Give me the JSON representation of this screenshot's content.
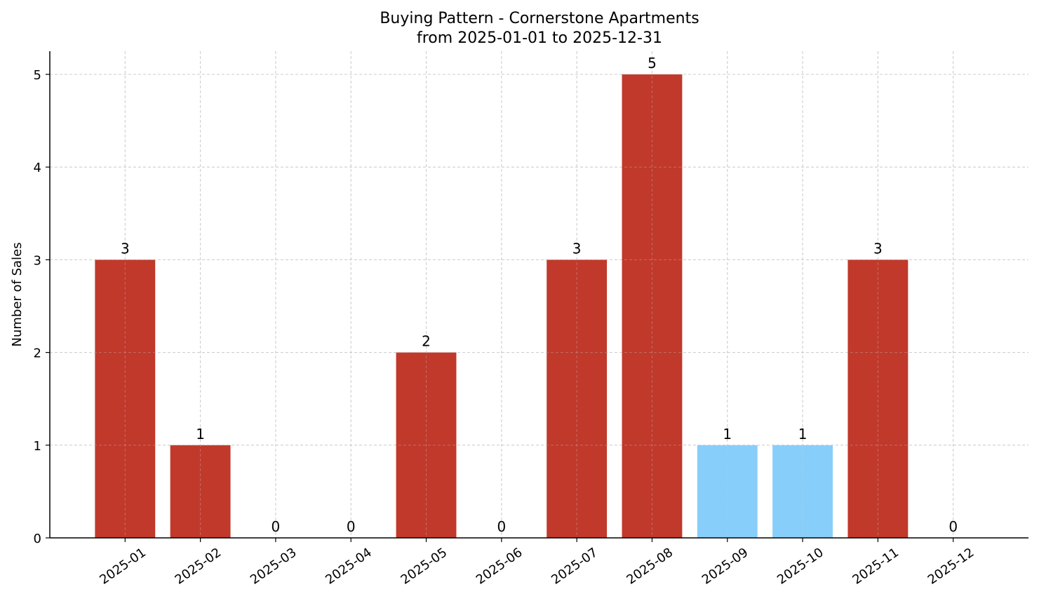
{
  "chart_data": {
    "type": "bar",
    "title": "Buying Pattern - Cornerstone Apartments",
    "subtitle": "from 2025-01-01 to 2025-12-31",
    "xlabel": "",
    "ylabel": "Number of Sales",
    "categories": [
      "2025-01",
      "2025-02",
      "2025-03",
      "2025-04",
      "2025-05",
      "2025-06",
      "2025-07",
      "2025-08",
      "2025-09",
      "2025-10",
      "2025-11",
      "2025-12"
    ],
    "values": [
      3,
      1,
      0,
      0,
      2,
      0,
      3,
      5,
      1,
      1,
      3,
      0
    ],
    "bar_colors": [
      "#C0392B",
      "#C0392B",
      "#C0392B",
      "#C0392B",
      "#C0392B",
      "#C0392B",
      "#C0392B",
      "#C0392B",
      "#87CEFA",
      "#87CEFA",
      "#C0392B",
      "#C0392B"
    ],
    "ylim": [
      0,
      5.25
    ],
    "yticks": [
      0,
      1,
      2,
      3,
      4,
      5
    ],
    "grid": true,
    "data_labels": true
  }
}
